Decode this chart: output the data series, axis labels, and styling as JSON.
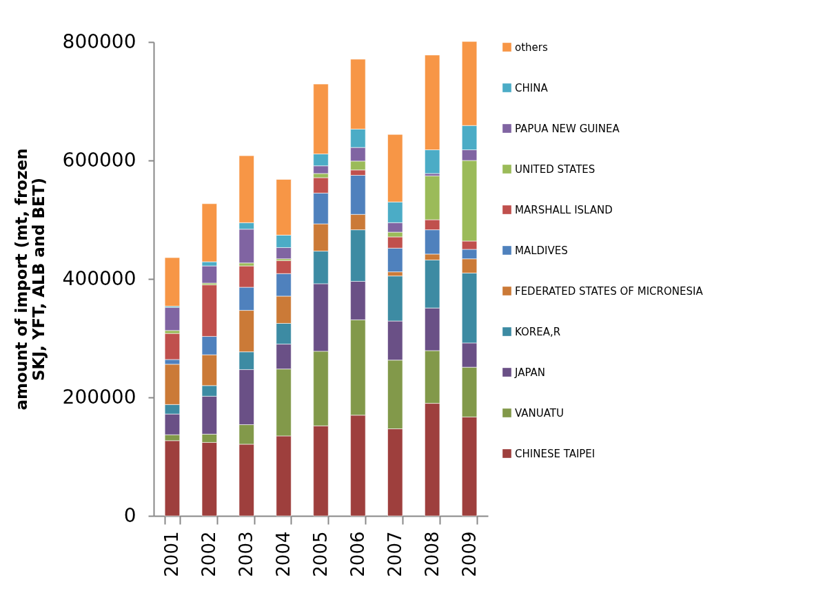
{
  "chart_data": {
    "type": "bar",
    "stacked": true,
    "ylabel": "amount of import (mt, frozen SKJ, YFT, ALB and BET)",
    "categories": [
      "2001",
      "2002",
      "2003",
      "2004",
      "2005",
      "2006",
      "2007",
      "2008",
      "2009"
    ],
    "ylim": [
      0,
      800000
    ],
    "yticks": [
      0,
      200000,
      400000,
      600000,
      800000
    ],
    "grid": false,
    "legend": "right",
    "series": [
      {
        "name": "CHINESE TAIPEI",
        "color": "#9e3f3d",
        "values": [
          127000,
          124000,
          121000,
          135000,
          152000,
          170000,
          147000,
          190000,
          167000
        ]
      },
      {
        "name": "VANUATU",
        "color": "#82994a",
        "values": [
          10000,
          14000,
          33000,
          113000,
          126000,
          161000,
          116000,
          89000,
          84000
        ]
      },
      {
        "name": "JAPAN",
        "color": "#6a5086",
        "values": [
          35000,
          64000,
          93000,
          42000,
          114000,
          65000,
          66000,
          72000,
          41000
        ]
      },
      {
        "name": "KOREA,R",
        "color": "#3d8ba3",
        "values": [
          16000,
          18000,
          30000,
          35000,
          55000,
          87000,
          76000,
          81000,
          118000
        ]
      },
      {
        "name": "FEDERATED STATES OF MICRONESIA",
        "color": "#cb7a37",
        "values": [
          68000,
          52000,
          70000,
          46000,
          46000,
          26000,
          7000,
          10000,
          24000
        ]
      },
      {
        "name": "MALDIVES",
        "color": "#4f81bd",
        "values": [
          8000,
          31000,
          39000,
          38000,
          52000,
          66000,
          40000,
          41000,
          16000
        ]
      },
      {
        "name": "MARSHALL ISLAND",
        "color": "#c0504d",
        "values": [
          44000,
          87000,
          36000,
          22000,
          26000,
          9000,
          19000,
          17000,
          14000
        ]
      },
      {
        "name": "UNITED STATES",
        "color": "#9bbb59",
        "values": [
          5000,
          3000,
          5000,
          3000,
          7000,
          15000,
          8000,
          74000,
          136000
        ]
      },
      {
        "name": "PAPUA NEW GUINEA",
        "color": "#8064a2",
        "values": [
          39000,
          29000,
          57000,
          19000,
          13000,
          23000,
          16000,
          4000,
          18000
        ]
      },
      {
        "name": "CHINA",
        "color": "#4bacc6",
        "values": [
          2000,
          7000,
          11000,
          21000,
          20000,
          31000,
          35000,
          40000,
          41000
        ]
      },
      {
        "name": "others",
        "color": "#f79646",
        "values": [
          82000,
          98000,
          113000,
          94000,
          118000,
          118000,
          114000,
          160000,
          142000
        ]
      }
    ]
  }
}
